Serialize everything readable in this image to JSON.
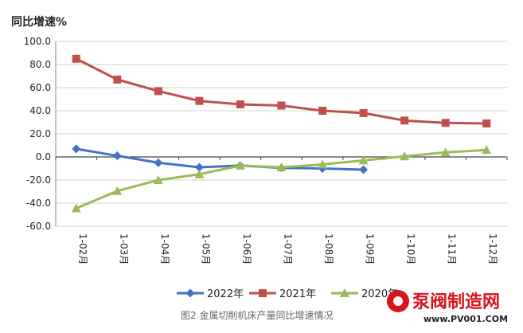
{
  "chart_data": {
    "type": "line",
    "title": "同比增速%",
    "caption": "图2 金属切削机床产量同比增速情况",
    "categories": [
      "1-02月",
      "1-03月",
      "1-04月",
      "1-05月",
      "1-06月",
      "1-07月",
      "1-08月",
      "1-09月",
      "1-10月",
      "1-11月",
      "1-12月"
    ],
    "ylim": [
      -60,
      100
    ],
    "yticks": [
      "100.0",
      "80.0",
      "60.0",
      "40.0",
      "20.0",
      "0.0",
      "-20.0",
      "-40.0",
      "-60.0"
    ],
    "ytick_values": [
      100,
      80,
      60,
      40,
      20,
      0,
      -20,
      -40,
      -60
    ],
    "series": [
      {
        "name": "2022年",
        "color": "#4472c4",
        "marker": "diamond",
        "values": [
          7,
          1,
          -5,
          -9,
          -7.5,
          -9.5,
          -10,
          -11,
          null,
          null,
          null
        ]
      },
      {
        "name": "2021年",
        "color": "#c0504d",
        "marker": "square",
        "values": [
          85,
          67,
          57,
          48.5,
          45.5,
          44.5,
          40,
          38,
          31.5,
          29.5,
          29
        ]
      },
      {
        "name": "2020年",
        "color": "#9bbb59",
        "marker": "triangle",
        "values": [
          -44.5,
          -29.5,
          -20,
          -15,
          -7.5,
          -9,
          -6.5,
          -3,
          0.5,
          4,
          6
        ]
      }
    ]
  },
  "branding": {
    "name": "泵阀制造网",
    "url": "www.PV001.COM"
  }
}
